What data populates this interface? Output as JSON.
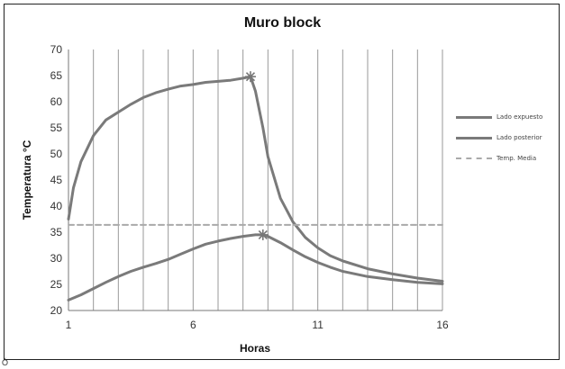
{
  "chart_data": {
    "type": "line",
    "title": "Muro  block",
    "xlabel": "Horas",
    "ylabel": "Temperatura °C",
    "xlim": [
      1,
      16
    ],
    "ylim": [
      20,
      70
    ],
    "xticks": [
      1,
      6,
      11,
      16
    ],
    "yticks": [
      20,
      25,
      30,
      35,
      40,
      45,
      50,
      55,
      60,
      65,
      70
    ],
    "vertical_grid": true,
    "legend_position": "right",
    "series": [
      {
        "name": "Lado expuesto",
        "color": "#7a7a7a",
        "style": "solid",
        "x": [
          1,
          1.2,
          1.5,
          2,
          2.5,
          3,
          3.5,
          4,
          4.5,
          5,
          5.5,
          6,
          6.5,
          7,
          7.5,
          8,
          8.3,
          8.5,
          8.8,
          9,
          9.5,
          10,
          10.5,
          11,
          11.5,
          12,
          13,
          14,
          15,
          16
        ],
        "y": [
          37.5,
          43.5,
          48.5,
          53.5,
          56.5,
          58,
          59.5,
          60.8,
          61.7,
          62.4,
          63,
          63.3,
          63.7,
          63.9,
          64.1,
          64.5,
          64.8,
          62,
          55,
          49.5,
          41.5,
          37,
          34,
          32,
          30.5,
          29.5,
          28,
          27,
          26.2,
          25.6
        ]
      },
      {
        "name": "Lado posterior",
        "color": "#7a7a7a",
        "style": "solid",
        "x": [
          1,
          1.5,
          2,
          2.5,
          3,
          3.5,
          4,
          4.5,
          5,
          5.5,
          6,
          6.5,
          7,
          7.5,
          8,
          8.5,
          8.8,
          9,
          9.5,
          10,
          10.5,
          11,
          11.5,
          12,
          13,
          14,
          15,
          16
        ],
        "y": [
          22,
          23,
          24.2,
          25.4,
          26.5,
          27.5,
          28.3,
          29,
          29.8,
          30.8,
          31.8,
          32.7,
          33.3,
          33.8,
          34.2,
          34.5,
          34.5,
          34.2,
          33,
          31.6,
          30.3,
          29.2,
          28.3,
          27.5,
          26.5,
          25.9,
          25.4,
          25.1
        ]
      },
      {
        "name": "Temp. Media",
        "color": "#aaaaaa",
        "style": "dashed",
        "x": [
          1,
          16
        ],
        "y": [
          36.4,
          36.4
        ]
      }
    ],
    "markers": [
      {
        "series": "Lado expuesto",
        "x": 8.3,
        "y": 64.8,
        "symbol": "asterisk"
      },
      {
        "series": "Lado posterior",
        "x": 8.8,
        "y": 34.5,
        "symbol": "asterisk"
      }
    ]
  },
  "corner_glyph": "Ó"
}
